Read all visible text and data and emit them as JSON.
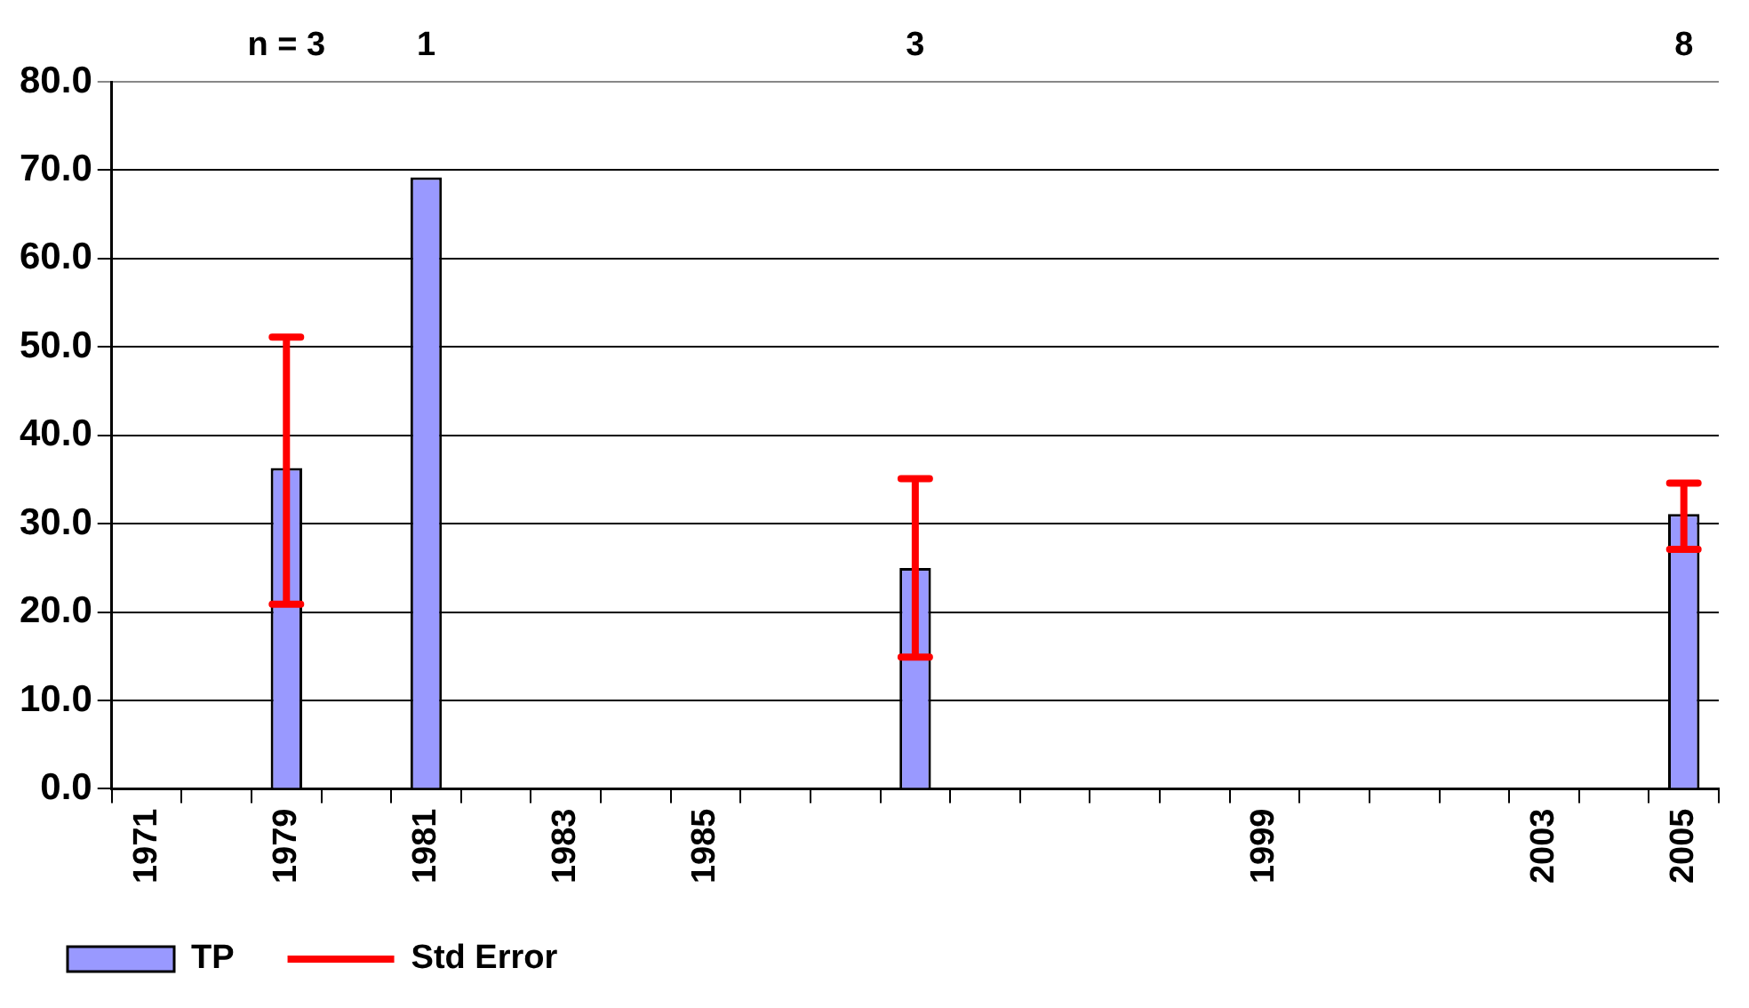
{
  "chart_data": {
    "type": "bar",
    "categories": [
      "1971",
      null,
      "1979",
      null,
      "1981",
      null,
      "1983",
      null,
      "1985",
      null,
      null,
      null,
      null,
      null,
      null,
      null,
      "1999",
      null,
      null,
      null,
      "2003",
      null,
      "2005"
    ],
    "series": [
      {
        "name": "TP",
        "color": "#9999ff",
        "values": [
          null,
          null,
          36.3,
          null,
          69.2,
          null,
          null,
          null,
          null,
          null,
          null,
          25.0,
          null,
          null,
          null,
          null,
          null,
          null,
          null,
          null,
          null,
          null,
          31.1
        ],
        "errors": [
          null,
          null,
          [
            20.9,
            51.1
          ],
          null,
          null,
          null,
          null,
          null,
          null,
          null,
          null,
          [
            14.9,
            35.1
          ],
          null,
          null,
          null,
          null,
          null,
          null,
          null,
          null,
          null,
          null,
          [
            27.1,
            34.6
          ]
        ]
      },
      {
        "name": "Std Error",
        "type": "line",
        "color": "#ff0000",
        "marker": "diamond",
        "values": [
          null,
          null,
          null,
          null,
          null,
          null,
          null,
          null,
          null,
          null,
          null,
          null,
          null,
          null,
          null,
          null,
          null,
          null,
          null,
          null,
          null,
          null,
          null
        ]
      }
    ],
    "ylim": [
      0,
      80
    ],
    "yticks": [
      {
        "value": 0,
        "label": "0.0"
      },
      {
        "value": 10,
        "label": "10.0"
      },
      {
        "value": 20,
        "label": "20.0"
      },
      {
        "value": 30,
        "label": "30.0"
      },
      {
        "value": 40,
        "label": "40.0"
      },
      {
        "value": 50,
        "label": "50.0"
      },
      {
        "value": 60,
        "label": "60.0"
      },
      {
        "value": 70,
        "label": "70.0"
      },
      {
        "value": 80,
        "label": "80.0"
      }
    ],
    "annotations": [
      "n = 3",
      "1",
      "3",
      "8"
    ],
    "grid": "y",
    "legend": "bottom left"
  }
}
